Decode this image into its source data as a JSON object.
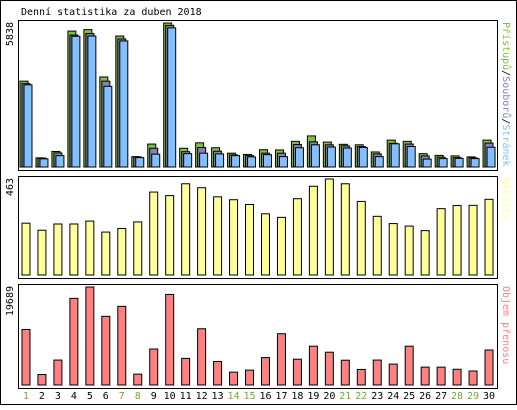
{
  "title": "Denní statistika za duben 2018",
  "colors": {
    "background": "#ffffff",
    "frame": "#000000",
    "hits_fill": "#80c040",
    "files_fill": "#8080c0",
    "pages_fill": "#80c0ff",
    "visits_fill": "#ffff99",
    "kbytes_fill": "#ff8080",
    "weekend_label": "#80a040",
    "weekday_label": "#000000"
  },
  "chart_data": [
    {
      "type": "bar",
      "name": "requests",
      "ylabel_parts": [
        {
          "text": "Přístupů",
          "color": "#80c040"
        },
        {
          "text": "/",
          "color": "#000000"
        },
        {
          "text": "Souborů",
          "color": "#8080c0"
        },
        {
          "text": "/",
          "color": "#000000"
        },
        {
          "text": "Stránek",
          "color": "#80c0ff"
        }
      ],
      "ymax_label": "5838",
      "ylim": [
        0,
        5838
      ],
      "series": [
        {
          "name": "Přístupů",
          "color": "#80c040",
          "values": [
            3480,
            370,
            630,
            5510,
            5570,
            3650,
            5310,
            420,
            930,
            5838,
            760,
            980,
            780,
            560,
            510,
            700,
            690,
            1040,
            1260,
            1010,
            920,
            900,
            610,
            1090,
            1040,
            540,
            470,
            450,
            410,
            1090
          ]
        },
        {
          "name": "Souborů",
          "color": "#8080c0",
          "values": [
            3380,
            360,
            570,
            5350,
            5410,
            3480,
            5190,
            400,
            760,
            5740,
            620,
            790,
            640,
            490,
            460,
            560,
            560,
            910,
            1020,
            900,
            860,
            830,
            530,
            960,
            930,
            450,
            400,
            380,
            370,
            970
          ]
        },
        {
          "name": "Stránek",
          "color": "#80c0ff",
          "values": [
            3330,
            330,
            460,
            5300,
            5310,
            3270,
            5110,
            380,
            520,
            5640,
            540,
            560,
            530,
            460,
            410,
            500,
            420,
            780,
            900,
            810,
            770,
            790,
            420,
            940,
            830,
            320,
            340,
            350,
            340,
            800
          ]
        }
      ]
    },
    {
      "type": "bar",
      "name": "visits",
      "ylabel_parts": [
        {
          "text": "Návštěv",
          "color": "#ffff99"
        }
      ],
      "ymax_label": "463",
      "ylim": [
        0,
        463
      ],
      "series": [
        {
          "name": "Návštěv",
          "color": "#ffff99",
          "values": [
            250,
            216,
            246,
            246,
            260,
            207,
            224,
            256,
            400,
            383,
            440,
            421,
            377,
            363,
            340,
            295,
            278,
            368,
            428,
            463,
            440,
            355,
            283,
            248,
            236,
            214,
            320,
            335,
            336,
            365
          ]
        }
      ]
    },
    {
      "type": "bar",
      "name": "kbytes",
      "ylabel_parts": [
        {
          "text": "Objem přenosu",
          "color": "#ff8080"
        }
      ],
      "ymax_label": "19689",
      "ylim": [
        0,
        19689
      ],
      "series": [
        {
          "name": "Objem přenosu",
          "color": "#ff8080",
          "values": [
            11150,
            2100,
            5010,
            17400,
            19689,
            13800,
            15800,
            2180,
            7230,
            18200,
            5350,
            11300,
            4720,
            2580,
            2990,
            5510,
            10300,
            5180,
            7800,
            6590,
            4980,
            3130,
            5010,
            4200,
            7800,
            3590,
            3590,
            3160,
            2810,
            7030
          ]
        }
      ]
    }
  ],
  "x_axis": {
    "days": [
      "1",
      "2",
      "3",
      "4",
      "5",
      "6",
      "7",
      "8",
      "9",
      "10",
      "11",
      "12",
      "13",
      "14",
      "15",
      "16",
      "17",
      "18",
      "19",
      "20",
      "21",
      "22",
      "23",
      "24",
      "25",
      "26",
      "27",
      "28",
      "29",
      "30"
    ],
    "weekend": [
      true,
      false,
      false,
      false,
      false,
      false,
      true,
      true,
      false,
      false,
      false,
      false,
      false,
      true,
      true,
      false,
      false,
      false,
      false,
      false,
      true,
      true,
      false,
      false,
      false,
      false,
      false,
      true,
      true,
      false
    ]
  }
}
